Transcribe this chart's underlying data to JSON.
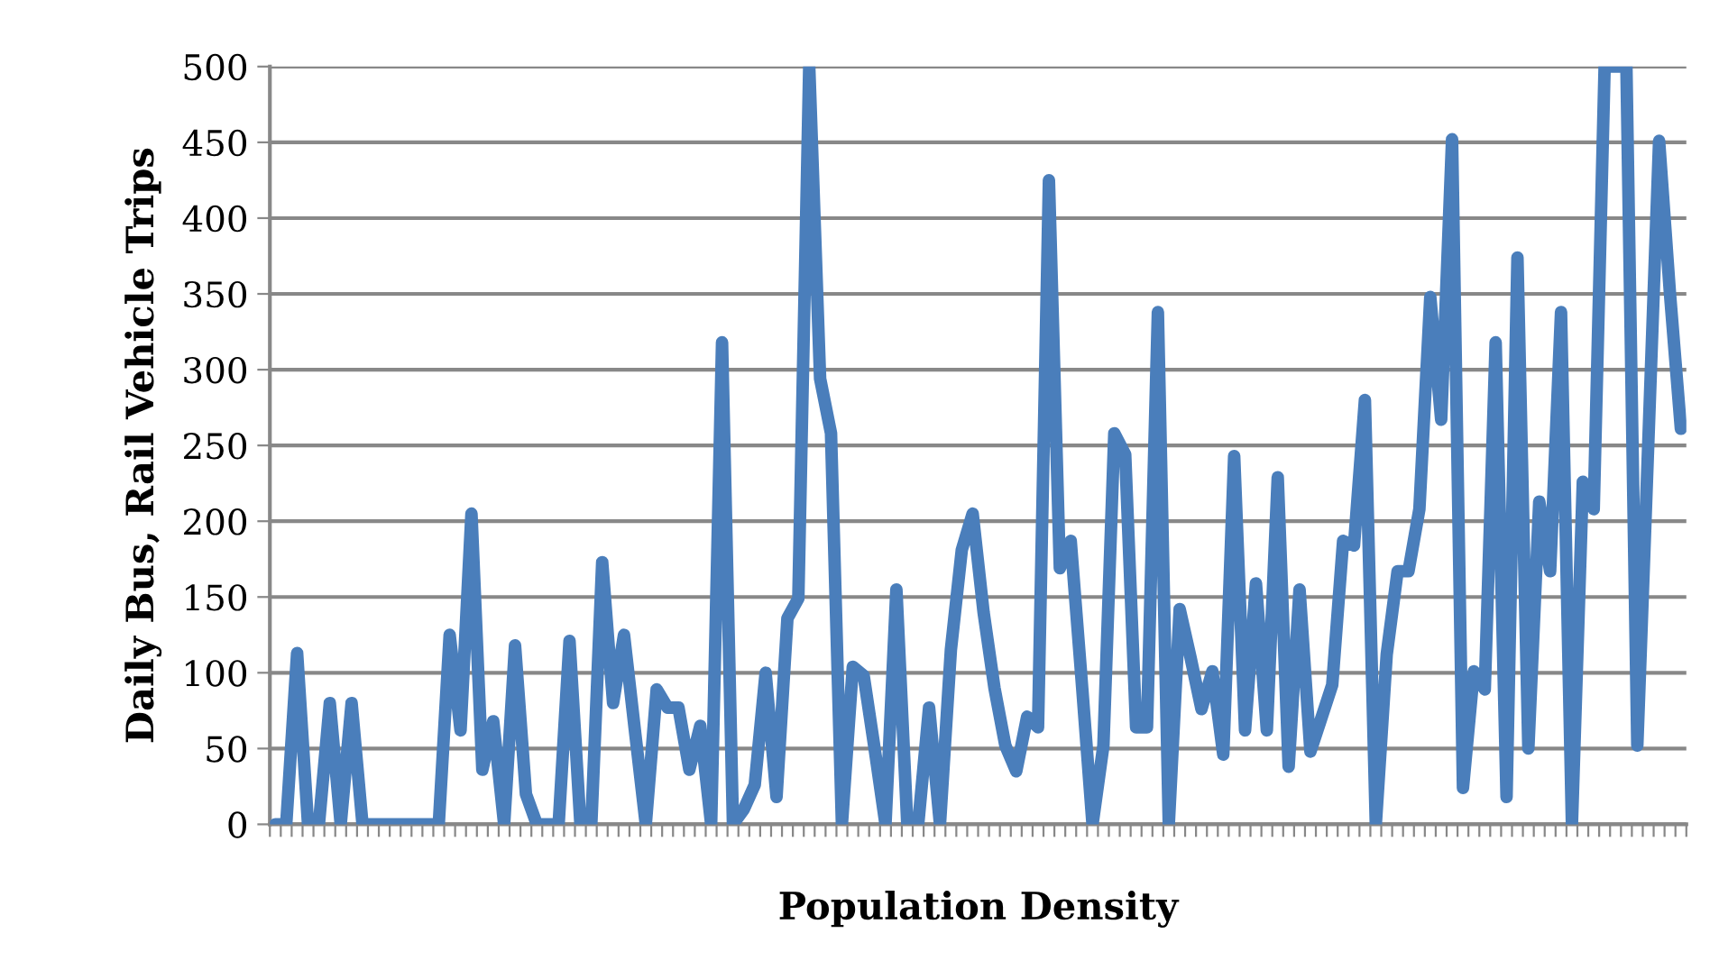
{
  "chart_data": {
    "type": "line",
    "xlabel": "Population Density",
    "ylabel": "Daily Bus, Rail Vehicle Trips",
    "categories": [
      null,
      null,
      null,
      null,
      null,
      null,
      null,
      null,
      null,
      null,
      null,
      null,
      null,
      null,
      null,
      null,
      null,
      null,
      null,
      null,
      null,
      null,
      null,
      null,
      null,
      null,
      null,
      null,
      null,
      null,
      null,
      null,
      null,
      null,
      null,
      null,
      null,
      null,
      null,
      null,
      null,
      null,
      null,
      null,
      null,
      null,
      null,
      null,
      null,
      null,
      null,
      null,
      null,
      null,
      null,
      null,
      null,
      null,
      null,
      null,
      null,
      null,
      null,
      null,
      null,
      null,
      null,
      null,
      null,
      null,
      null,
      null,
      null,
      null,
      null,
      null,
      null,
      null,
      null,
      null,
      null,
      null,
      null,
      null,
      null,
      null,
      null,
      null,
      null,
      null,
      null,
      null,
      null,
      null,
      null,
      null,
      null,
      null,
      null,
      null,
      null,
      null,
      null,
      null,
      null,
      null,
      null,
      null,
      null,
      null,
      null,
      null,
      null,
      null,
      null,
      null,
      null,
      null,
      null,
      null,
      null,
      null,
      null,
      null,
      null,
      null,
      null,
      null,
      null,
      null
    ],
    "values": [
      0,
      0,
      113,
      0,
      0,
      80,
      0,
      80,
      0,
      0,
      0,
      0,
      0,
      0,
      0,
      0,
      125,
      62,
      205,
      36,
      68,
      0,
      118,
      20,
      0,
      0,
      0,
      121,
      0,
      0,
      173,
      80,
      125,
      62,
      0,
      89,
      77,
      77,
      36,
      65,
      0,
      318,
      0,
      10,
      26,
      100,
      18,
      136,
      149,
      500,
      294,
      258,
      0,
      104,
      98,
      50,
      0,
      155,
      0,
      0,
      77,
      0,
      115,
      181,
      205,
      140,
      90,
      52,
      35,
      71,
      64,
      425,
      169,
      187,
      95,
      0,
      52,
      258,
      244,
      64,
      64,
      338,
      0,
      142,
      110,
      76,
      101,
      46,
      243,
      62,
      159,
      62,
      229,
      38,
      155,
      48,
      70,
      92,
      187,
      184,
      280,
      0,
      112,
      167,
      167,
      208,
      348,
      267,
      452,
      24,
      101,
      89,
      318,
      18,
      374,
      50,
      213,
      167,
      338,
      0,
      226,
      208,
      500,
      500,
      500,
      52,
      250,
      451,
      350,
      261
    ],
    "color": "#4a7ebb",
    "line_style": "solid",
    "ylim": [
      0,
      500
    ],
    "yticks": [
      0,
      50,
      100,
      150,
      200,
      250,
      300,
      350,
      400,
      450,
      500
    ],
    "grid": "y"
  }
}
